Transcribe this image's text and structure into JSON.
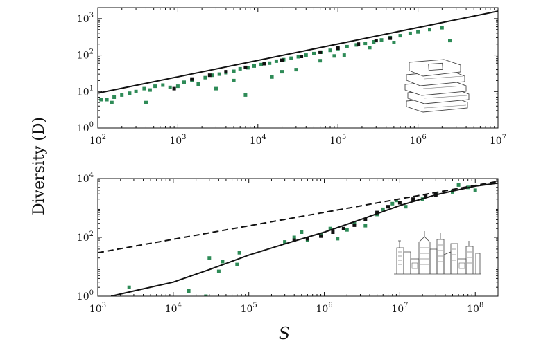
{
  "figure": {
    "ylabel": "Diversity (D)",
    "xlabel": "S"
  },
  "chart_data": [
    {
      "type": "scatter",
      "title": "",
      "xlabel": "",
      "ylabel": "Diversity (D)",
      "xscale": "log",
      "yscale": "log",
      "xlim": [
        100,
        10000000
      ],
      "ylim": [
        1,
        2000
      ],
      "x_ticks": [
        "10^2",
        "10^3",
        "10^4",
        "10^5",
        "10^6",
        "10^7"
      ],
      "y_ticks": [
        "10^0",
        "10^1",
        "10^2",
        "10^3"
      ],
      "grid": false,
      "legend": "none",
      "illustration": "books-icon",
      "series": [
        {
          "kind": "points",
          "color": "#2e8b57",
          "points": [
            [
              110,
              6
            ],
            [
              130,
              6
            ],
            [
              160,
              7
            ],
            [
              200,
              8
            ],
            [
              250,
              9
            ],
            [
              300,
              10
            ],
            [
              380,
              12
            ],
            [
              450,
              11
            ],
            [
              520,
              14
            ],
            [
              650,
              15
            ],
            [
              800,
              13
            ],
            [
              1000,
              14
            ],
            [
              1200,
              18
            ],
            [
              1500,
              20
            ],
            [
              1800,
              16
            ],
            [
              2200,
              24
            ],
            [
              2700,
              28
            ],
            [
              3300,
              30
            ],
            [
              4000,
              33
            ],
            [
              5000,
              36
            ],
            [
              6000,
              42
            ],
            [
              7500,
              45
            ],
            [
              9000,
              50
            ],
            [
              11000,
              55
            ],
            [
              14000,
              60
            ],
            [
              17000,
              68
            ],
            [
              21000,
              75
            ],
            [
              26000,
              82
            ],
            [
              32000,
              90
            ],
            [
              40000,
              100
            ],
            [
              50000,
              110
            ],
            [
              62000,
              120
            ],
            [
              80000,
              135
            ],
            [
              100000,
              150
            ],
            [
              130000,
              170
            ],
            [
              170000,
              190
            ],
            [
              220000,
              210
            ],
            [
              280000,
              230
            ],
            [
              350000,
              260
            ],
            [
              450000,
              300
            ],
            [
              600000,
              340
            ],
            [
              800000,
              390
            ],
            [
              1000000,
              430
            ],
            [
              1400000,
              500
            ],
            [
              2000000,
              560
            ],
            [
              400,
              5
            ],
            [
              3000,
              12
            ],
            [
              7000,
              8
            ],
            [
              15000,
              25
            ],
            [
              30000,
              40
            ],
            [
              60000,
              70
            ],
            [
              120000,
              100
            ],
            [
              250000,
              160
            ],
            [
              500000,
              220
            ],
            [
              2500000,
              250
            ],
            [
              150,
              5
            ],
            [
              5000,
              20
            ],
            [
              20000,
              35
            ],
            [
              90000,
              95
            ]
          ]
        },
        {
          "kind": "points",
          "color": "#111111",
          "points": [
            [
              900,
              12
            ],
            [
              1500,
              22
            ],
            [
              2500,
              28
            ],
            [
              4000,
              35
            ],
            [
              7000,
              46
            ],
            [
              12000,
              58
            ],
            [
              20000,
              72
            ],
            [
              35000,
              92
            ],
            [
              60000,
              120
            ],
            [
              100000,
              155
            ],
            [
              180000,
              200
            ],
            [
              300000,
              250
            ],
            [
              450000,
              290
            ]
          ]
        },
        {
          "kind": "line",
          "style": "solid",
          "color": "#111111",
          "points": [
            [
              100,
              9
            ],
            [
              10000000,
              1600
            ]
          ]
        }
      ]
    },
    {
      "type": "scatter",
      "title": "",
      "xlabel": "S",
      "ylabel": "Diversity (D)",
      "xscale": "log",
      "yscale": "log",
      "xlim": [
        1000,
        200000000
      ],
      "ylim": [
        1,
        10000
      ],
      "x_ticks": [
        "10^3",
        "10^4",
        "10^5",
        "10^6",
        "10^7",
        "10^8"
      ],
      "y_ticks": [
        "10^0",
        "10^2",
        "10^4"
      ],
      "grid": false,
      "legend": "none",
      "illustration": "city-skyline-icon",
      "series": [
        {
          "kind": "points",
          "color": "#2e8b57",
          "points": [
            [
              2600,
              2
            ],
            [
              16000,
              1.5
            ],
            [
              27000,
              1
            ],
            [
              30000,
              20
            ],
            [
              40000,
              7
            ],
            [
              45000,
              15
            ],
            [
              70000,
              12
            ],
            [
              75000,
              30
            ],
            [
              300000,
              70
            ],
            [
              400000,
              100
            ],
            [
              500000,
              150
            ],
            [
              600000,
              80
            ],
            [
              900000,
              120
            ],
            [
              1200000,
              200
            ],
            [
              1500000,
              90
            ],
            [
              2000000,
              180
            ],
            [
              2500000,
              300
            ],
            [
              3500000,
              250
            ],
            [
              5000000,
              600
            ],
            [
              6000000,
              900
            ],
            [
              8000000,
              1400
            ],
            [
              9000000,
              1800
            ],
            [
              12000000,
              1100
            ],
            [
              20000000,
              2000
            ],
            [
              30000000,
              3000
            ],
            [
              50000000,
              3500
            ],
            [
              60000000,
              6000
            ],
            [
              80000000,
              5000
            ],
            [
              100000000,
              4000
            ]
          ]
        },
        {
          "kind": "points",
          "color": "#111111",
          "points": [
            [
              400000,
              80
            ],
            [
              600000,
              90
            ],
            [
              900000,
              110
            ],
            [
              1300000,
              150
            ],
            [
              1800000,
              200
            ],
            [
              2500000,
              260
            ],
            [
              3500000,
              400
            ],
            [
              5000000,
              700
            ],
            [
              7000000,
              1100
            ],
            [
              10000000,
              1500
            ],
            [
              15000000,
              2000
            ],
            [
              22000000,
              2500
            ],
            [
              30000000,
              2800
            ]
          ]
        },
        {
          "kind": "line",
          "style": "solid",
          "color": "#111111",
          "points": [
            [
              1500,
              1
            ],
            [
              3000,
              1.5
            ],
            [
              10000,
              3
            ],
            [
              30000,
              8
            ],
            [
              100000,
              25
            ],
            [
              300000,
              60
            ],
            [
              1000000,
              150
            ],
            [
              3000000,
              400
            ],
            [
              10000000,
              1200
            ],
            [
              30000000,
              2800
            ],
            [
              100000000,
              5500
            ],
            [
              200000000,
              7000
            ]
          ]
        },
        {
          "kind": "line",
          "style": "dashed",
          "color": "#111111",
          "points": [
            [
              1000,
              30
            ],
            [
              200000000,
              8000
            ]
          ]
        }
      ]
    }
  ]
}
